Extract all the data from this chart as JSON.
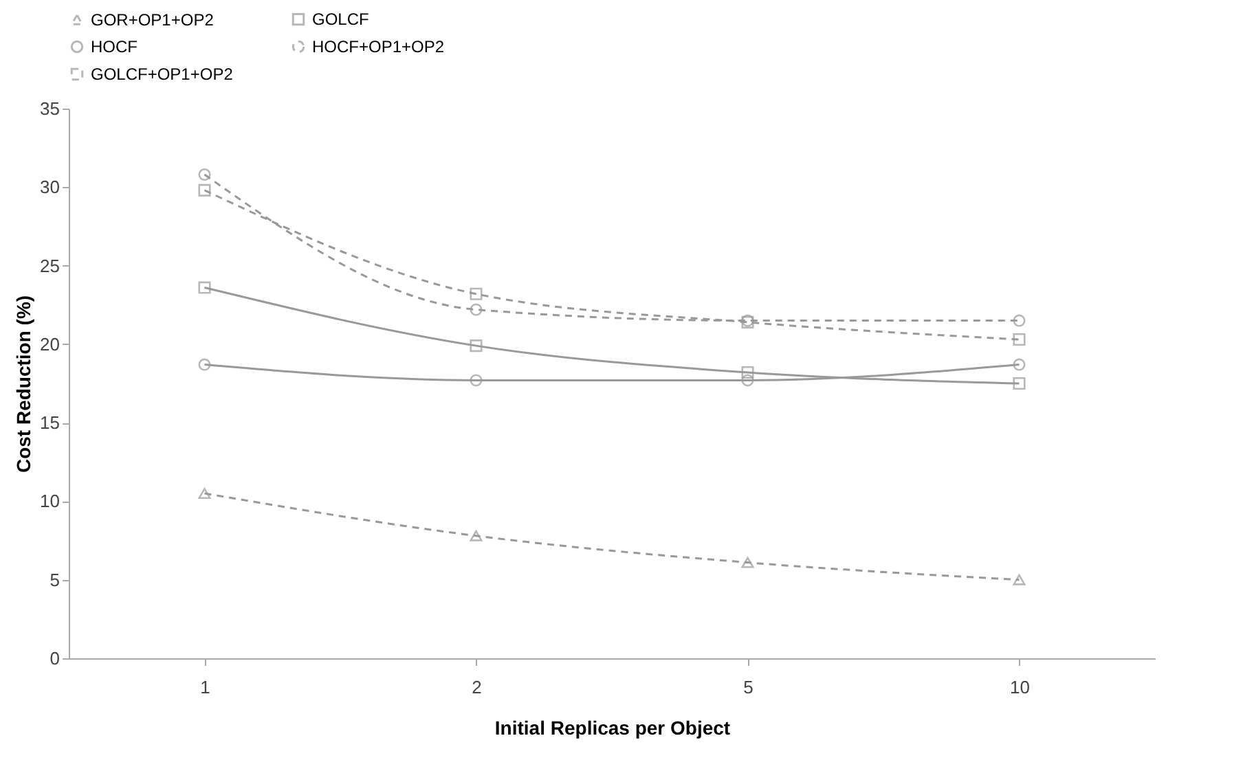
{
  "chart_data": {
    "type": "line",
    "xlabel": "Initial Replicas per Object",
    "ylabel": "Cost Reduction (%)",
    "categories": [
      "1",
      "2",
      "5",
      "10"
    ],
    "ylim": [
      0,
      35
    ],
    "yticks": [
      0,
      5,
      10,
      15,
      20,
      25,
      30,
      35
    ],
    "grid": false,
    "legend": "top",
    "series": [
      {
        "name": "GOR+OP1+OP2",
        "color": "#999999",
        "marker": "triangle",
        "line_style": "dashed",
        "values": [
          10.5,
          7.8,
          6.1,
          5.0
        ]
      },
      {
        "name": "GOLCF",
        "color": "#999999",
        "marker": "square",
        "line_style": "solid",
        "values": [
          23.6,
          19.9,
          18.2,
          17.5
        ]
      },
      {
        "name": "HOCF",
        "color": "#999999",
        "marker": "circle",
        "line_style": "solid",
        "values": [
          18.7,
          17.7,
          17.7,
          18.7
        ]
      },
      {
        "name": "HOCF+OP1+OP2",
        "color": "#999999",
        "marker": "circle",
        "line_style": "dashed",
        "values": [
          30.8,
          22.2,
          21.5,
          21.5
        ]
      },
      {
        "name": "GOLCF+OP1+OP2",
        "color": "#999999",
        "marker": "square",
        "line_style": "dashed",
        "values": [
          29.8,
          23.2,
          21.4,
          20.3
        ]
      }
    ]
  }
}
